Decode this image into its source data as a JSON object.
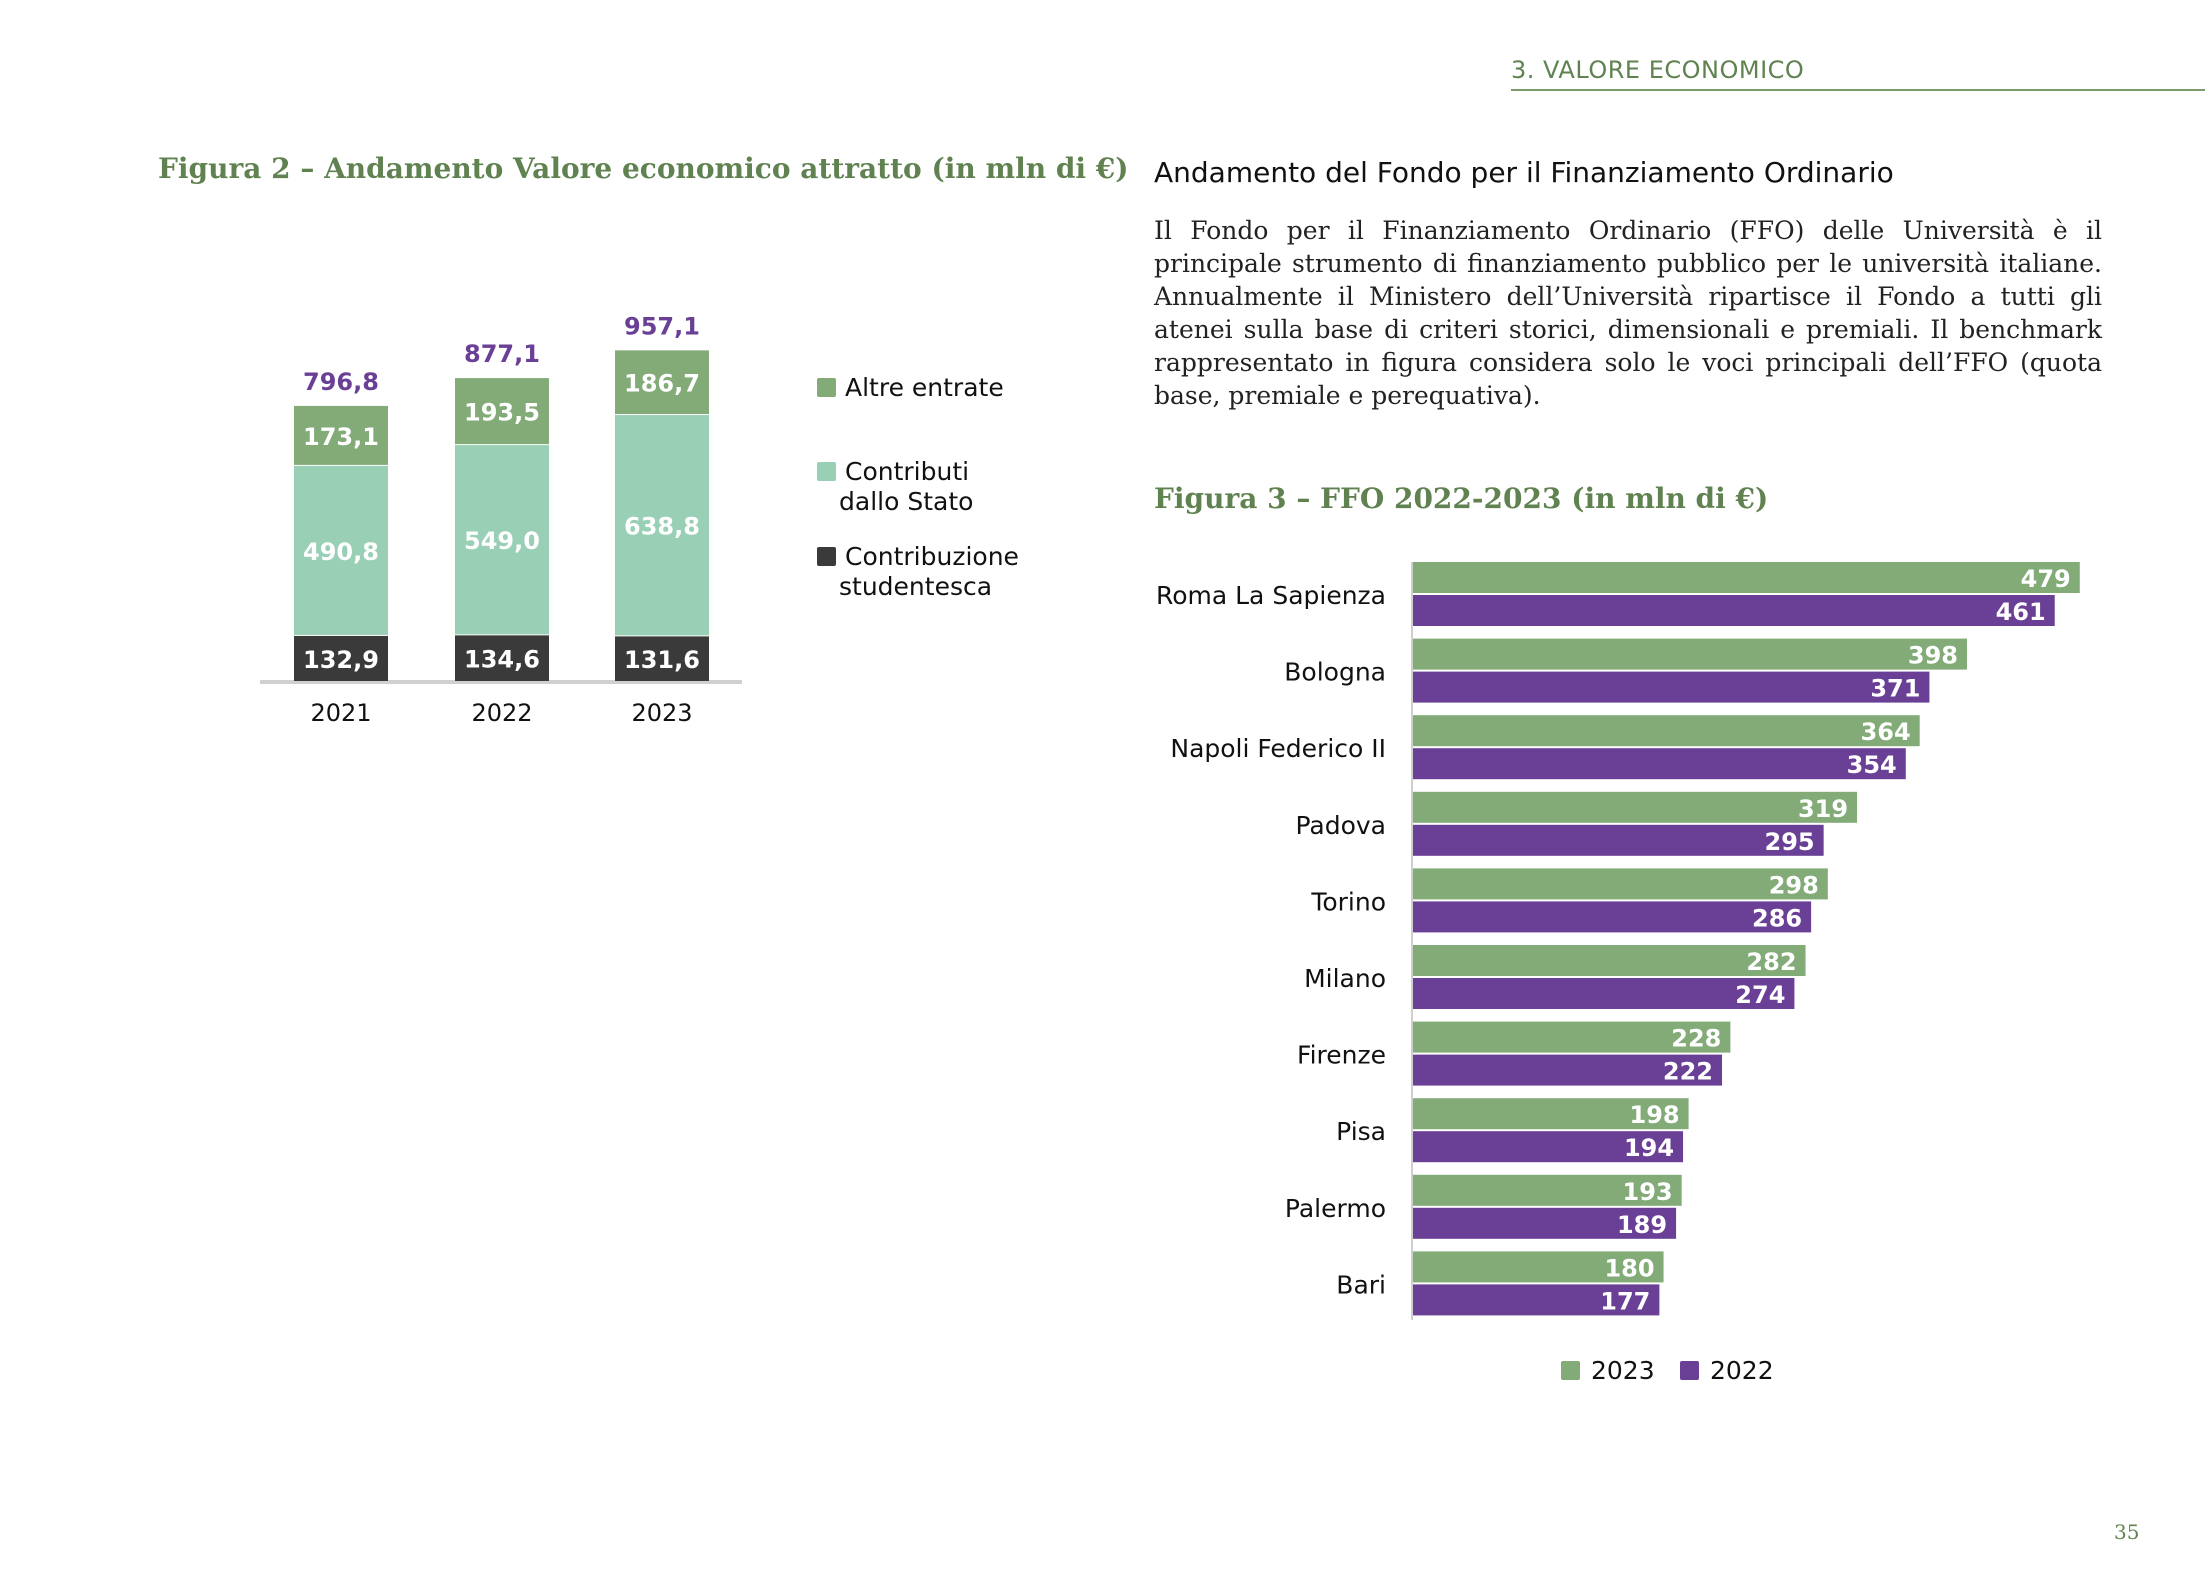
{
  "header": {
    "section": "3. VALORE ECONOMICO"
  },
  "figure2": {
    "title": "Figura 2 – Andamento Valore economico attratto (in mln di €)"
  },
  "section": {
    "heading": "Andamento del Fondo per il Finanziamento Ordinario",
    "body": "Il Fondo per il Finanziamento Ordinario (FFO) delle Università è il principale strumento di finanziamento pubblico per le università italiane. Annualmente il Ministero dell’Università ripartisce il Fondo a tutti gli atenei sulla base di criteri storici, dimensionali e premiali. Il benchmark rappresentato in figura considera solo le voci principali dell’FFO (quota base, premiale e perequativa)."
  },
  "figure3": {
    "title": "Figura 3 – FFO 2022-2023 (in mln di €)"
  },
  "page_number": "35",
  "colors": {
    "altre": "#82ab78",
    "contributi": "#98cfb5",
    "studentesca": "#3a3a3a",
    "total_label": "#6a3f96",
    "y2023": "#82ab78",
    "y2022": "#6a3f96"
  },
  "chart_data": [
    {
      "type": "bar",
      "stacked": true,
      "categories": [
        "2021",
        "2022",
        "2023"
      ],
      "series": [
        {
          "name": "Contribuzione studentesca",
          "values": [
            132.9,
            134.6,
            131.6
          ],
          "labels": [
            "132,9",
            "134,6",
            "131,6"
          ]
        },
        {
          "name": "Contributi dallo Stato",
          "values": [
            490.8,
            549.0,
            638.8
          ],
          "labels": [
            "490,8",
            "549,0",
            "638,8"
          ]
        },
        {
          "name": "Altre entrate",
          "values": [
            173.1,
            193.5,
            186.7
          ],
          "labels": [
            "173,1",
            "193,5",
            "186,7"
          ]
        }
      ],
      "totals": [
        796.8,
        877.1,
        957.1
      ],
      "total_labels": [
        "796,8",
        "877,1",
        "957,1"
      ],
      "legend": [
        {
          "lines": [
            "Altre entrate"
          ]
        },
        {
          "lines": [
            "Contributi",
            "dallo Stato"
          ]
        },
        {
          "lines": [
            "Contribuzione",
            "studentesca"
          ]
        }
      ],
      "legend_position": "right"
    },
    {
      "type": "bar",
      "orientation": "horizontal",
      "categories": [
        "Roma La Sapienza",
        "Bologna",
        "Napoli Federico II",
        "Padova",
        "Torino",
        "Milano",
        "Firenze",
        "Pisa",
        "Palermo",
        "Bari"
      ],
      "series": [
        {
          "name": "2023",
          "values": [
            479,
            398,
            364,
            319,
            298,
            282,
            228,
            198,
            193,
            180
          ]
        },
        {
          "name": "2022",
          "values": [
            461,
            371,
            354,
            295,
            286,
            274,
            222,
            194,
            189,
            177
          ]
        }
      ],
      "legend_position": "bottom"
    }
  ]
}
